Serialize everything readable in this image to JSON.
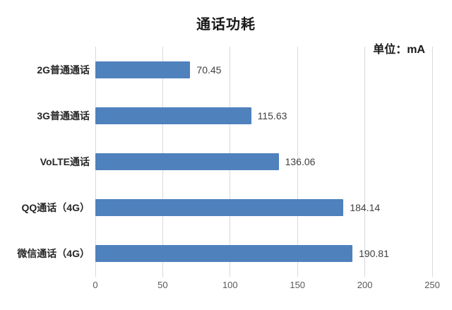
{
  "header": {
    "title": "通话功耗",
    "unit_label": "单位：mA"
  },
  "chart_data": {
    "type": "bar",
    "orientation": "horizontal",
    "title": "通话功耗",
    "subtitle": "",
    "unit_label": "单位：mA",
    "categories": [
      "2G普通通话",
      "3G普通通话",
      "VoLTE通话",
      "QQ通话（4G）",
      "微信通话（4G）"
    ],
    "values": [
      70.45,
      115.63,
      136.06,
      184.14,
      190.81
    ],
    "value_labels": [
      "70.45",
      "115.63",
      "136.06",
      "184.14",
      "190.81"
    ],
    "xlabel": "",
    "ylabel": "",
    "xlim": [
      0,
      250
    ],
    "xticks": [
      0,
      50,
      100,
      150,
      200,
      250
    ],
    "grid": "vertical-only",
    "legend": "none",
    "colors": {
      "bar": "#4F81BD",
      "gridline": "#D9D9D9",
      "title_text": "#1a1a1a",
      "category_text": "#262626",
      "value_text": "#404040",
      "tick_text": "#595959",
      "background": "#ffffff"
    }
  }
}
